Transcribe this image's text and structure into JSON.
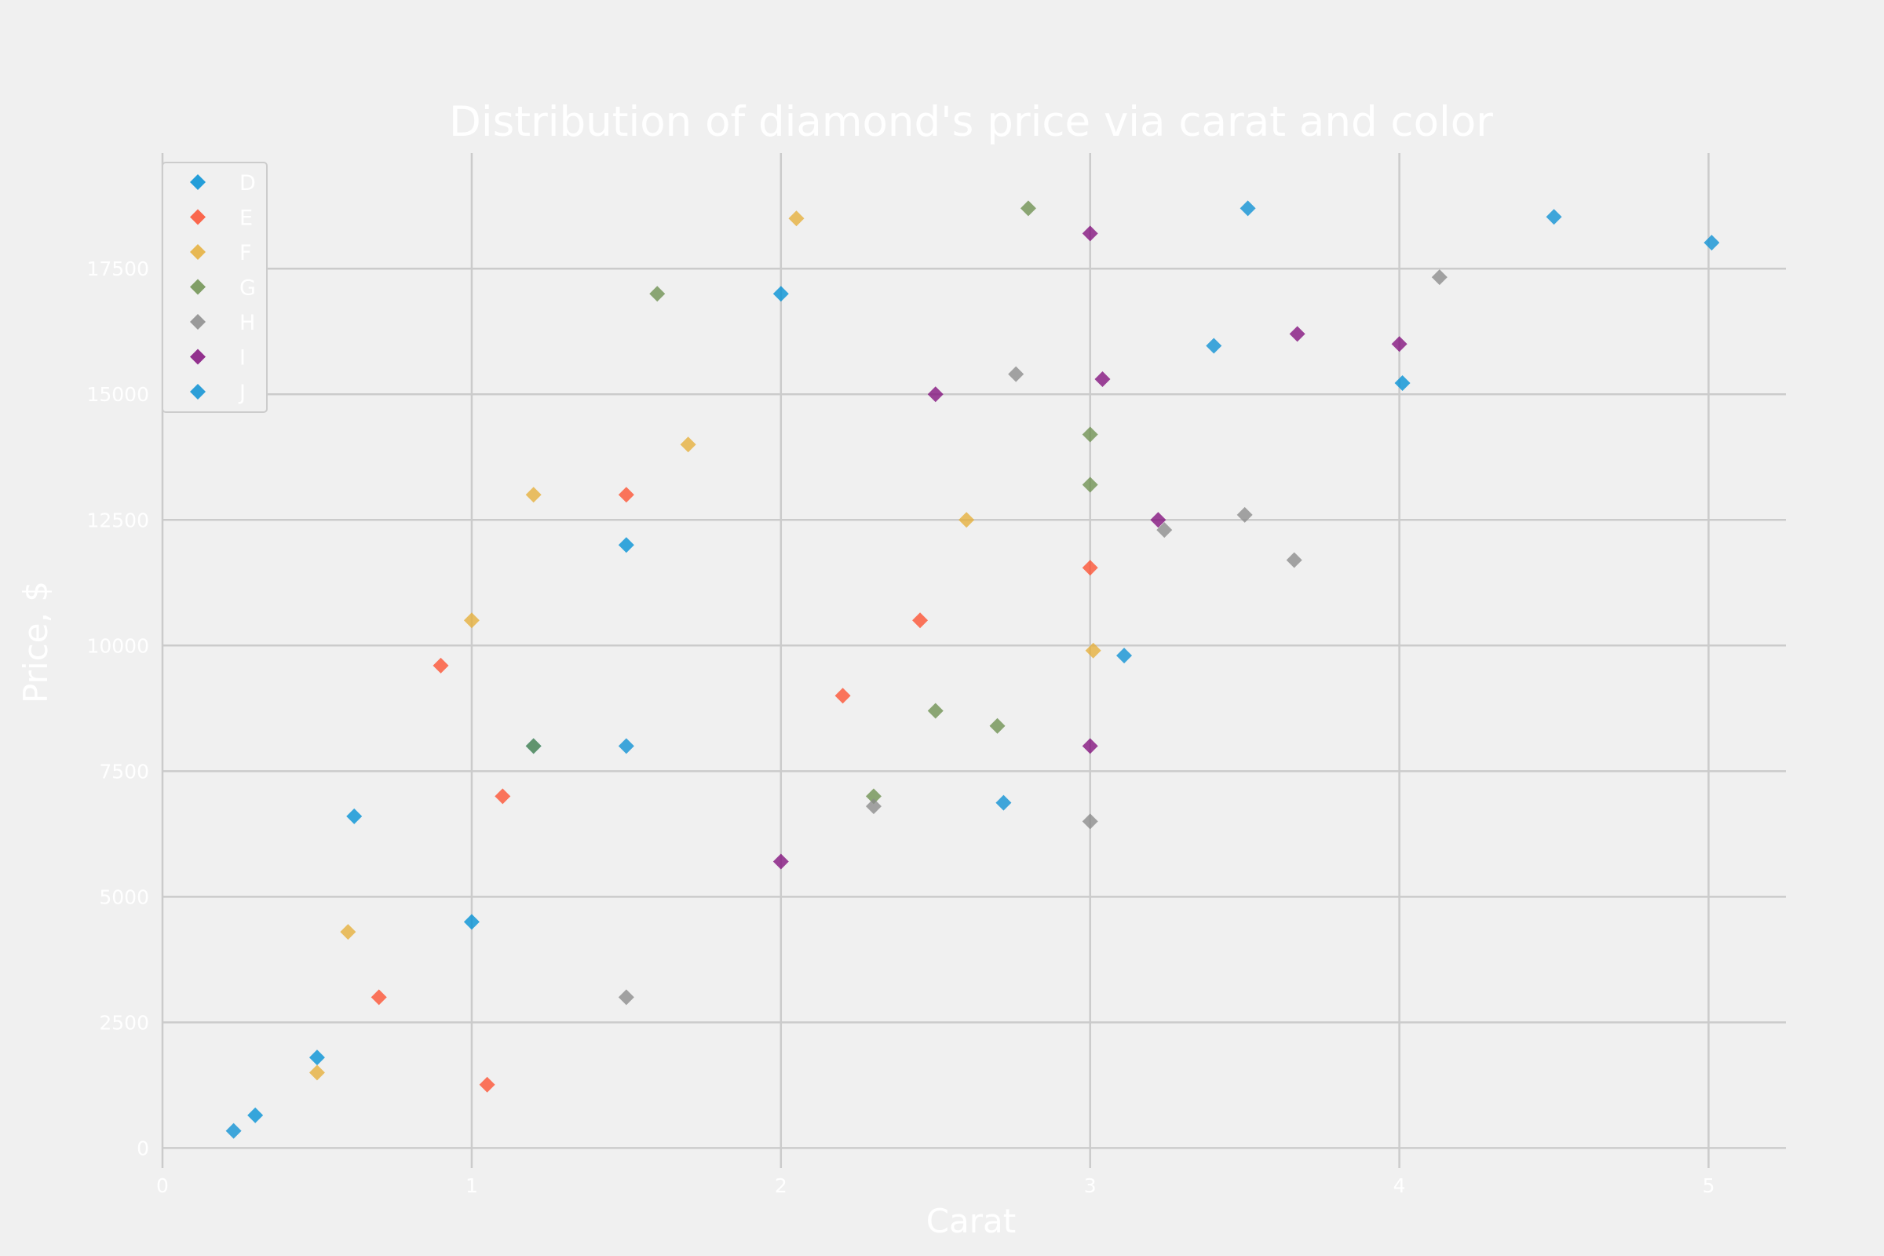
{
  "chart_data": {
    "type": "scatter",
    "title": "Distribution of diamond's price via carat and color",
    "xlabel": "Carat",
    "ylabel": "Price, $",
    "xlim": [
      0,
      5.25
    ],
    "ylim": [
      -400,
      19800
    ],
    "x_ticks": [
      "0",
      "1",
      "2",
      "3",
      "4",
      "5"
    ],
    "y_ticks": [
      "0",
      "2500",
      "5000",
      "7500",
      "10000",
      "12500",
      "15000",
      "17500"
    ],
    "grid": true,
    "legend_position": "top-left",
    "marker": "diamond",
    "series": [
      {
        "name": "D",
        "color": "#008fd5",
        "points": [
          [
            4.01,
            15223
          ],
          [
            0.3,
            650
          ],
          [
            0.5,
            1800
          ],
          [
            0.62,
            6600
          ],
          [
            1.0,
            4500
          ],
          [
            1.2,
            8000
          ],
          [
            1.5,
            12000
          ],
          [
            2.0,
            17000
          ]
        ]
      },
      {
        "name": "E",
        "color": "#fc4f30",
        "points": [
          [
            3.0,
            11548
          ],
          [
            0.9,
            9600
          ],
          [
            1.05,
            1260
          ],
          [
            2.45,
            10500
          ],
          [
            0.7,
            3000
          ],
          [
            1.1,
            7000
          ],
          [
            1.5,
            13000
          ],
          [
            2.2,
            9000
          ]
        ]
      },
      {
        "name": "F",
        "color": "#e5ae38",
        "points": [
          [
            3.01,
            9900
          ],
          [
            0.5,
            1500
          ],
          [
            0.6,
            4300
          ],
          [
            1.0,
            10500
          ],
          [
            1.2,
            13000
          ],
          [
            1.7,
            14000
          ],
          [
            2.05,
            18500
          ],
          [
            2.6,
            12500
          ]
        ]
      },
      {
        "name": "G",
        "color": "#6d904f",
        "points": [
          [
            2.8,
            18700
          ],
          [
            3.0,
            14200
          ],
          [
            3.0,
            13200
          ],
          [
            2.5,
            8700
          ],
          [
            2.7,
            8400
          ],
          [
            1.2,
            8000
          ],
          [
            1.6,
            17000
          ],
          [
            2.3,
            7000
          ]
        ]
      },
      {
        "name": "H",
        "color": "#8b8b8b",
        "points": [
          [
            4.13,
            17329
          ],
          [
            3.5,
            12600
          ],
          [
            3.66,
            11700
          ],
          [
            3.24,
            12300
          ],
          [
            3.0,
            6500
          ],
          [
            2.76,
            15400
          ],
          [
            1.5,
            3000
          ],
          [
            2.3,
            6800
          ]
        ]
      },
      {
        "name": "I",
        "color": "#810f7c",
        "points": [
          [
            3.0,
            18200
          ],
          [
            3.67,
            16200
          ],
          [
            4.0,
            16000
          ],
          [
            3.22,
            12500
          ],
          [
            3.0,
            8000
          ],
          [
            3.04,
            15300
          ],
          [
            2.0,
            5700
          ],
          [
            2.5,
            15000
          ]
        ]
      },
      {
        "name": "J",
        "color": "#0b90d3",
        "points": [
          [
            5.01,
            18018
          ],
          [
            4.5,
            18531
          ],
          [
            3.51,
            18701
          ],
          [
            3.4,
            15964
          ],
          [
            3.11,
            9800
          ],
          [
            2.72,
            6870
          ],
          [
            0.23,
            340
          ],
          [
            1.5,
            8000
          ]
        ]
      }
    ]
  }
}
